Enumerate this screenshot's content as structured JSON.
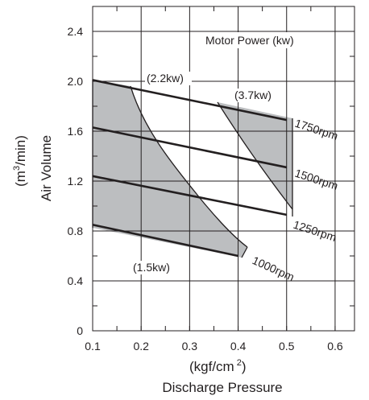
{
  "chart_data": {
    "type": "line",
    "title": "",
    "xlabel": "Discharge Pressure",
    "xlabel_unit_base": "(kgf/cm",
    "xlabel_unit_sup": "2",
    "xlabel_unit_close": ")",
    "ylabel": "Air Volume",
    "ylabel_unit_base": "(m",
    "ylabel_unit_sup": "3",
    "ylabel_unit_close": "/min)",
    "x_ticks": [
      "0.1",
      "0.2",
      "0.3",
      "0.4",
      "0.5",
      "0.6"
    ],
    "y_ticks": [
      "0",
      "0.4",
      "0.8",
      "1.2",
      "1.6",
      "2.0",
      "2.4"
    ],
    "xlim": [
      0.1,
      0.64
    ],
    "ylim": [
      0,
      2.6
    ],
    "grid": true,
    "series": [
      {
        "name": "1750rpm",
        "x": [
          0.1,
          0.5
        ],
        "y": [
          2.01,
          1.69
        ]
      },
      {
        "name": "1500rpm",
        "x": [
          0.1,
          0.5
        ],
        "y": [
          1.63,
          1.31
        ]
      },
      {
        "name": "1250rpm",
        "x": [
          0.1,
          0.5
        ],
        "y": [
          1.24,
          0.93
        ]
      },
      {
        "name": "1000rpm",
        "x": [
          0.1,
          0.4
        ],
        "y": [
          0.85,
          0.6
        ]
      }
    ],
    "power_curves": [
      {
        "label": "(1.5kw)"
      },
      {
        "label": "(2.2kw)"
      },
      {
        "label": "(3.7kw)"
      }
    ],
    "legend_title": "Motor Power (kw)",
    "colors": {
      "fill": "#bcbec0",
      "line": "#231f20",
      "background": "#ffffff"
    }
  }
}
